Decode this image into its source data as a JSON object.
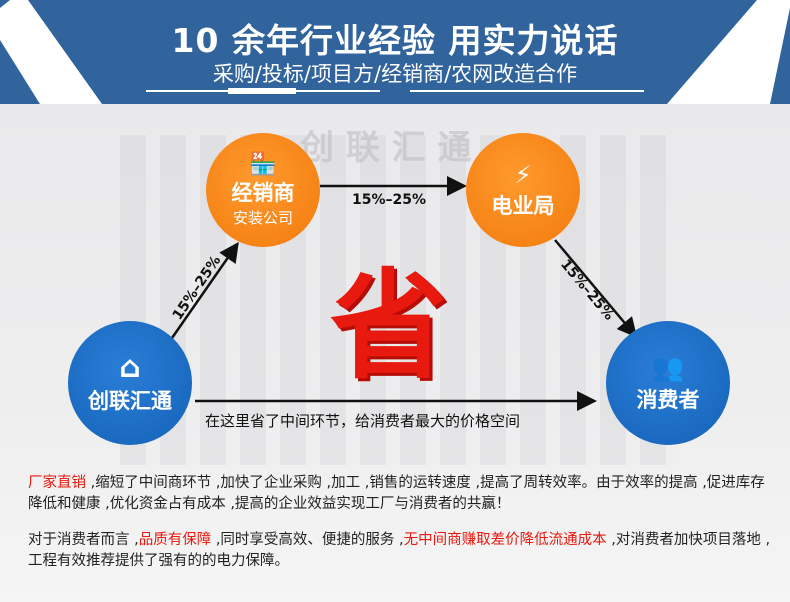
{
  "banner": {
    "title": "10 余年行业经验 用实力说话",
    "subtitle": "采购/投标/项目方/经销商/农网改造合作",
    "color": "#31649c"
  },
  "nodes": {
    "dealer": {
      "label": "经销商",
      "sublabel": "安装公司",
      "icon": "store-icon",
      "color": "#f5820f"
    },
    "bureau": {
      "label": "电业局",
      "icon": "power-building-icon",
      "color": "#f5820f"
    },
    "company": {
      "label": "创联汇通",
      "icon": "home-icon",
      "color": "#1a6ac4"
    },
    "consumer": {
      "label": "消费者",
      "icon": "users-icon",
      "color": "#1a6ac4"
    }
  },
  "arrows": {
    "company_to_dealer": "15%–25%",
    "dealer_to_bureau": "15%–25%",
    "bureau_to_consumer": "15%–25%"
  },
  "center_char": "省",
  "caption": "在这里省了中间环节，给消费者最大的价格空间",
  "para1": {
    "highlight": "厂家直销",
    "text": " ,缩短了中间商环节 ,加快了企业采购 ,加工 ,销售的运转速度 ,提高了周转效率。由于效率的提高 ,促进库存降低和健康 ,优化资金占有成本 ,提高的企业效益实现工厂与消费者的共赢！"
  },
  "para2": {
    "t1": "对于消费者而言 ,",
    "h1": "品质有保障",
    "t2": " ,同时享受高效、便捷的服务 ,",
    "h2": "无中间商赚取差价降低流通成本",
    "t3": " ,对消费者加快项目落地 ,工程有效推荐提供了强有的的电力保障。"
  },
  "watermark": "创 联 汇 通"
}
